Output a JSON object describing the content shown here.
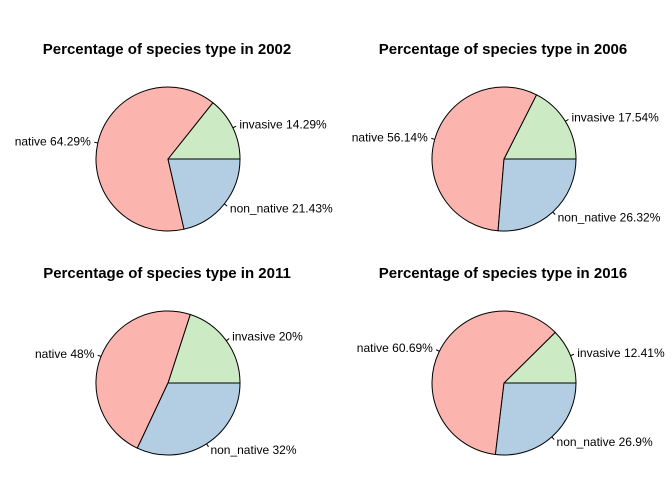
{
  "chart_data": [
    {
      "type": "pie",
      "title": "Percentage of species type in 2002",
      "slices": [
        {
          "category": "invasive",
          "value": 14.29,
          "label": "invasive 14.29%",
          "color": "#CCEBC5"
        },
        {
          "category": "native",
          "value": 64.29,
          "label": "native 64.29%",
          "color": "#FBB4AE"
        },
        {
          "category": "non_native",
          "value": 21.43,
          "label": "non_native 21.43%",
          "color": "#B3CDE3"
        }
      ]
    },
    {
      "type": "pie",
      "title": "Percentage of species type in 2006",
      "slices": [
        {
          "category": "invasive",
          "value": 17.54,
          "label": "invasive 17.54%",
          "color": "#CCEBC5"
        },
        {
          "category": "native",
          "value": 56.14,
          "label": "native 56.14%",
          "color": "#FBB4AE"
        },
        {
          "category": "non_native",
          "value": 26.32,
          "label": "non_native 26.32%",
          "color": "#B3CDE3"
        }
      ]
    },
    {
      "type": "pie",
      "title": "Percentage of species type in 2011",
      "slices": [
        {
          "category": "invasive",
          "value": 20,
          "label": "invasive 20%",
          "color": "#CCEBC5"
        },
        {
          "category": "native",
          "value": 48,
          "label": "native 48%",
          "color": "#FBB4AE"
        },
        {
          "category": "non_native",
          "value": 32,
          "label": "non_native 32%",
          "color": "#B3CDE3"
        }
      ]
    },
    {
      "type": "pie",
      "title": "Percentage of species type in 2016",
      "slices": [
        {
          "category": "invasive",
          "value": 12.41,
          "label": "invasive 12.41%",
          "color": "#CCEBC5"
        },
        {
          "category": "native",
          "value": 60.69,
          "label": "native 60.69%",
          "color": "#FBB4AE"
        },
        {
          "category": "non_native",
          "value": 26.9,
          "label": "non_native 26.9%",
          "color": "#B3CDE3"
        }
      ]
    }
  ]
}
